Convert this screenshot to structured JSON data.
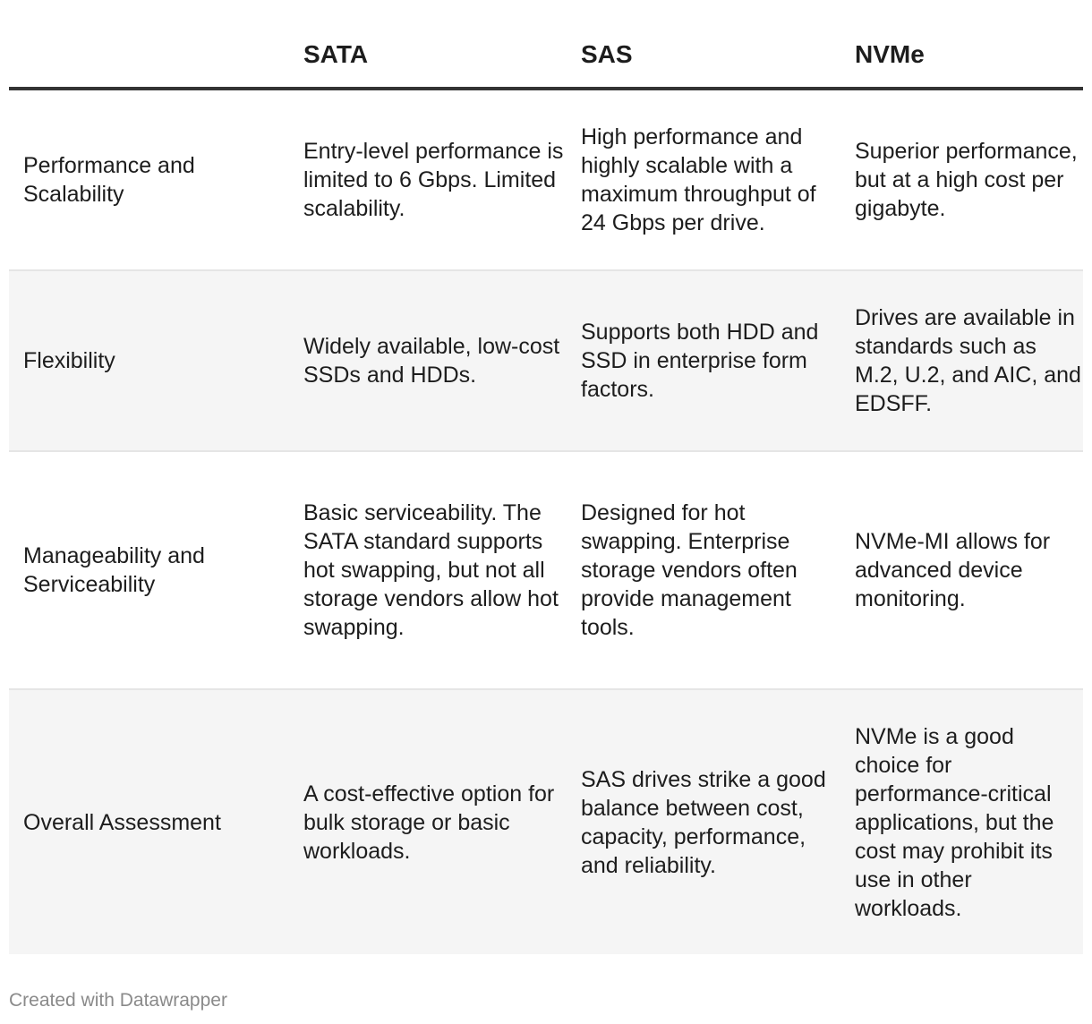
{
  "table": {
    "headers": [
      "",
      "SATA",
      "SAS",
      "NVMe"
    ],
    "rows": [
      {
        "label": "Performance and Scalability",
        "cells": [
          "Entry-level performance is limited to 6 Gbps. Limited scalability.",
          "High performance and highly scalable with a maximum throughput of 24 Gbps per drive.",
          "Superior performance, but at a high cost per gigabyte."
        ]
      },
      {
        "label": "Flexibility",
        "cells": [
          "Widely available, low-cost SSDs and HDDs.",
          "Supports both HDD and SSD in enterprise form factors.",
          "Drives are available in standards such as M.2, U.2, and AIC, and EDSFF."
        ]
      },
      {
        "label": "Manageability and Serviceability",
        "cells": [
          "Basic serviceability. The SATA standard supports hot swapping, but not all storage vendors allow hot swapping.",
          "Designed for hot swapping. Enterprise storage vendors often provide management tools.",
          "NVMe-MI allows for advanced device monitoring."
        ]
      },
      {
        "label": "Overall Assessment",
        "cells": [
          "A cost-effective option for bulk storage or basic workloads.",
          "SAS drives strike a good balance between cost, capacity, performance, and reliability.",
          "NVMe is a good choice for performance-critical applications, but the cost may prohibit its use in other workloads."
        ]
      }
    ]
  },
  "footer": {
    "credit": "Created with Datawrapper"
  },
  "colors": {
    "header_rule": "#333333",
    "row_divider": "#e5e5e5",
    "alt_row_bg": "#f5f5f5",
    "footer_text": "#8a8a8a"
  }
}
